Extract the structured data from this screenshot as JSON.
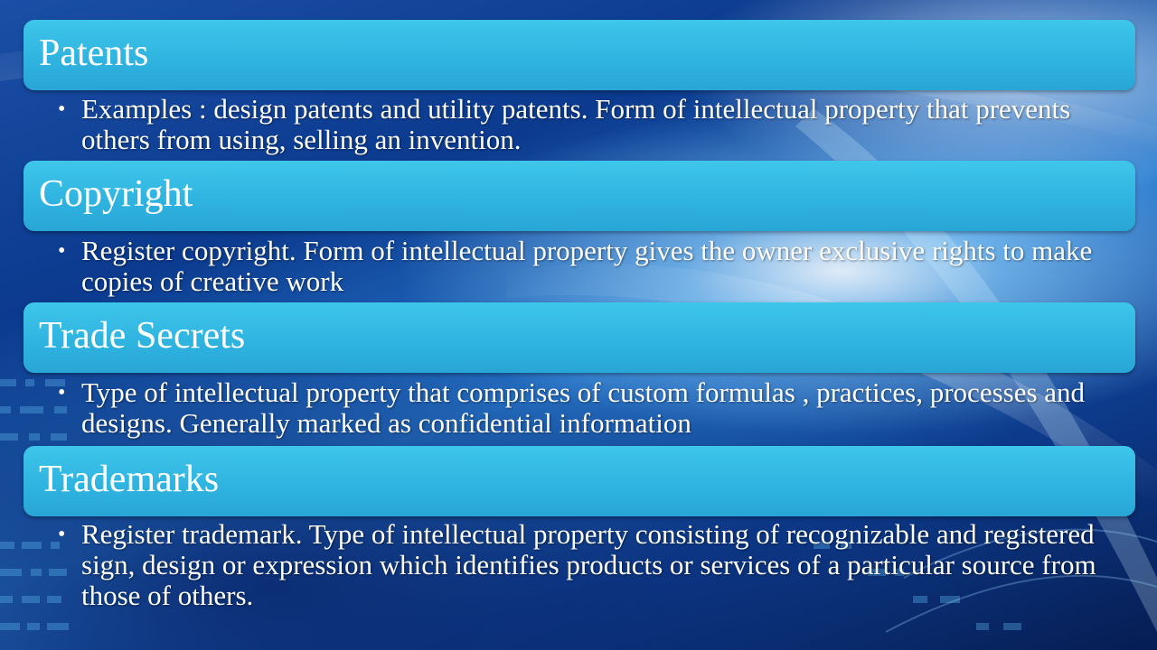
{
  "sections": [
    {
      "title": "Patents",
      "text": "Examples : design patents and utility patents. Form of intellectual property that prevents others from using, selling an invention."
    },
    {
      "title": "Copyright",
      "text": "Register copyright. Form of intellectual property gives the owner exclusive rights to make copies of creative work"
    },
    {
      "title": "Trade Secrets",
      "text": "Type of intellectual property that comprises of custom formulas , practices, processes and designs. Generally marked as confidential information"
    },
    {
      "title": "Trademarks",
      "text": "Register trademark.  Type of intellectual property consisting of recognizable and registered sign, design or expression which identifies products or services of a particular source from those of others."
    }
  ],
  "bullet_symbol": "•",
  "colors": {
    "header_fill": "#2fb4e0",
    "text": "#ffffff",
    "background": "#0b3a8e"
  }
}
